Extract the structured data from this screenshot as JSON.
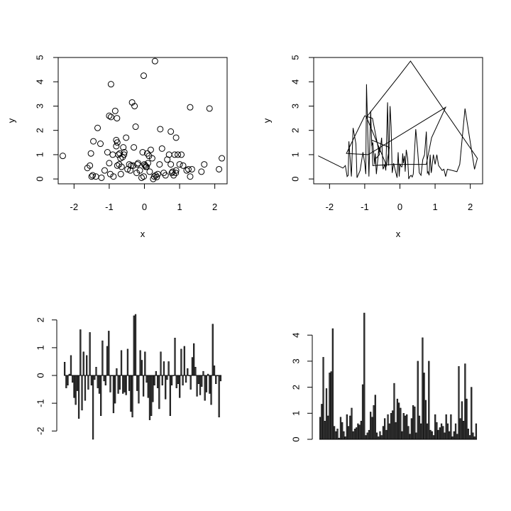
{
  "chart_data": [
    {
      "type": "scatter",
      "xlabel": "x",
      "ylabel": "y",
      "xlim": [
        -2.45,
        2.35
      ],
      "ylim": [
        -0.2,
        5.0
      ],
      "xticks": [
        "-2",
        "-1",
        "0",
        "1",
        "2"
      ],
      "yticks": [
        "0",
        "1",
        "2",
        "3",
        "4",
        "5"
      ],
      "x": [
        -2.32,
        -1.62,
        -1.55,
        -1.5,
        -1.47,
        -1.45,
        -1.38,
        -1.33,
        -1.25,
        -1.22,
        -1.13,
        -1.05,
        -1.0,
        -0.97,
        -0.95,
        -0.88,
        -0.83,
        -0.8,
        -0.77,
        -0.74,
        -0.72,
        -0.7,
        -0.67,
        -0.65,
        -0.62,
        -0.6,
        -0.57,
        -0.52,
        -0.48,
        -0.43,
        -0.4,
        -0.35,
        -0.32,
        -0.28,
        -0.25,
        -0.22,
        -0.18,
        -0.13,
        -0.08,
        -0.05,
        -0.02,
        0.0,
        0.02,
        0.04,
        0.06,
        0.08,
        0.1,
        0.13,
        0.15,
        0.18,
        0.22,
        0.25,
        0.28,
        0.32,
        0.35,
        0.38,
        0.45,
        0.5,
        0.55,
        0.6,
        0.65,
        0.7,
        0.75,
        0.78,
        0.8,
        0.83,
        0.86,
        0.89,
        0.9,
        0.95,
        1.0,
        1.05,
        1.1,
        1.2,
        1.25,
        1.3,
        1.35,
        1.62,
        1.7,
        1.85,
        2.12,
        2.2,
        0.3,
        -0.02,
        -0.95,
        -0.38,
        -0.3,
        -0.8,
        -0.77,
        -0.2,
        0.43,
        0.75,
        0.9,
        1.3,
        -0.9,
        -1.52,
        -1.0,
        -0.78,
        -0.58,
        -0.68
      ],
      "y": [
        0.95,
        0.45,
        0.55,
        0.1,
        0.15,
        1.55,
        0.1,
        2.1,
        1.45,
        0.05,
        0.35,
        1.1,
        0.65,
        0.2,
        3.9,
        0.1,
        2.8,
        1.35,
        1.5,
        1.0,
        0.6,
        1.05,
        0.2,
        0.5,
        0.9,
        1.3,
        1.1,
        1.7,
        0.4,
        0.6,
        0.35,
        3.15,
        0.55,
        3.0,
        2.15,
        0.25,
        0.65,
        0.35,
        0.05,
        1.1,
        0.1,
        0.6,
        0.55,
        0.5,
        0.5,
        1.05,
        0.65,
        0.95,
        0.3,
        1.2,
        0.85,
        0.0,
        0.1,
        0.15,
        0.08,
        0.2,
        2.05,
        1.25,
        0.25,
        0.15,
        0.8,
        1.0,
        1.95,
        0.25,
        0.3,
        0.15,
        1.0,
        0.25,
        0.35,
        1.0,
        0.6,
        1.0,
        0.55,
        0.35,
        0.4,
        0.1,
        0.4,
        0.3,
        0.6,
        2.9,
        0.4,
        0.85,
        4.85,
        4.25,
        2.55,
        0.55,
        1.3,
        1.6,
        0.55,
        0.6,
        0.6,
        0.6,
        1.7,
        2.95,
        1.0,
        1.05,
        2.6,
        2.5,
        1.0,
        0.85
      ]
    },
    {
      "type": "line",
      "xlabel": "x",
      "ylabel": "y",
      "xlim": [
        -2.45,
        2.35
      ],
      "ylim": [
        -0.2,
        5.0
      ],
      "xticks": [
        "-2",
        "-1",
        "0",
        "1",
        "2"
      ],
      "yticks": [
        "0",
        "1",
        "2",
        "3",
        "4",
        "5"
      ],
      "x": [
        -2.32,
        -1.62,
        -1.55,
        -1.5,
        -1.47,
        -1.45,
        -1.38,
        -1.33,
        -1.25,
        -1.22,
        -1.13,
        -1.05,
        -1.0,
        -0.97,
        -0.95,
        -0.88,
        -0.83,
        -0.8,
        -0.77,
        -0.74,
        -0.72,
        -0.7,
        -0.67,
        -0.65,
        -0.62,
        -0.6,
        -0.57,
        -0.52,
        -0.48,
        -0.43,
        -0.4,
        -0.35,
        -0.32,
        -0.28,
        -0.25,
        -0.22,
        -0.18,
        -0.13,
        -0.08,
        -0.05,
        -0.02,
        0.0,
        0.02,
        0.04,
        0.06,
        0.08,
        0.1,
        0.13,
        0.15,
        0.18,
        0.22,
        0.25,
        0.28,
        0.32,
        0.35,
        0.38,
        0.45,
        0.5,
        0.55,
        0.6,
        0.65,
        0.7,
        0.75,
        0.78,
        0.8,
        0.83,
        0.86,
        0.89,
        0.9,
        0.95,
        1.0,
        1.05,
        1.1,
        1.2,
        1.25,
        1.3,
        1.35,
        1.62,
        1.7,
        1.85,
        2.12,
        2.2,
        0.3,
        -0.02,
        -0.95,
        -0.38,
        -0.3,
        -0.8,
        -0.77,
        -0.2,
        0.43,
        0.75,
        0.9,
        1.3,
        -0.9,
        -1.52,
        -1.0,
        -0.78,
        -0.58,
        -0.68
      ],
      "y": [
        0.95,
        0.45,
        0.55,
        0.1,
        0.15,
        1.55,
        0.1,
        2.1,
        1.45,
        0.05,
        0.35,
        1.1,
        0.65,
        0.2,
        3.9,
        0.1,
        2.8,
        1.35,
        1.5,
        1.0,
        0.6,
        1.05,
        0.2,
        0.5,
        0.9,
        1.3,
        1.1,
        1.7,
        0.4,
        0.6,
        0.35,
        3.15,
        0.55,
        3.0,
        2.15,
        0.25,
        0.65,
        0.35,
        0.05,
        1.1,
        0.1,
        0.6,
        0.55,
        0.5,
        0.5,
        1.05,
        0.65,
        0.95,
        0.3,
        1.2,
        0.85,
        0.0,
        0.1,
        0.15,
        0.08,
        0.2,
        2.05,
        1.25,
        0.25,
        0.15,
        0.8,
        1.0,
        1.95,
        0.25,
        0.3,
        0.15,
        1.0,
        0.25,
        0.35,
        1.0,
        0.6,
        1.0,
        0.55,
        0.35,
        0.4,
        0.1,
        0.4,
        0.3,
        0.6,
        2.9,
        0.4,
        0.85,
        4.85,
        4.25,
        2.55,
        0.55,
        1.3,
        1.6,
        0.55,
        0.6,
        0.6,
        0.6,
        1.7,
        2.95,
        1.0,
        1.05,
        2.6,
        2.5,
        1.0,
        0.85
      ]
    },
    {
      "type": "bar",
      "xlabel": "",
      "ylabel": "",
      "ylim": [
        -2.3,
        2.25
      ],
      "yticks": [
        "-2",
        "-1",
        "0",
        "1",
        "2"
      ],
      "values": [
        0.48,
        -0.45,
        -0.35,
        0.05,
        0.72,
        -0.25,
        -0.8,
        -1.05,
        -0.55,
        -1.55,
        1.65,
        -1.25,
        0.85,
        -0.9,
        0.72,
        -0.5,
        1.55,
        -0.35,
        -2.3,
        -0.15,
        0.3,
        -0.45,
        -0.65,
        -1.45,
        1.25,
        -0.2,
        -0.35,
        1.05,
        1.6,
        -0.6,
        0.0,
        -1.35,
        -1.0,
        0.25,
        -0.65,
        -0.5,
        0.9,
        -0.65,
        -0.6,
        -0.7,
        0.95,
        -0.55,
        -1.3,
        -1.5,
        2.15,
        2.2,
        -0.55,
        -1.0,
        0.9,
        0.55,
        -0.75,
        0.85,
        -0.25,
        -0.8,
        -1.6,
        -1.45,
        -0.95,
        -0.35,
        0.15,
        -0.45,
        -1.2,
        0.85,
        -0.35,
        0.5,
        -0.85,
        -0.15,
        0.5,
        -1.45,
        -0.35,
        0.0,
        1.35,
        -0.45,
        -0.3,
        -0.8,
        0.95,
        -0.35,
        1.05,
        -0.25,
        0.25,
        0.0,
        -0.5,
        0.65,
        1.15,
        0.3,
        -0.75,
        -0.3,
        -0.7,
        -0.4,
        0.15,
        -0.9,
        -0.6,
        0.05,
        -0.65,
        -1.05,
        1.85,
        0.35,
        -0.3,
        0.0,
        -1.5,
        -0.2
      ]
    },
    {
      "type": "bar",
      "xlabel": "",
      "ylabel": "",
      "ylim": [
        0,
        4.85
      ],
      "yticks": [
        "0",
        "1",
        "2",
        "3",
        "4"
      ],
      "values": [
        0.85,
        1.35,
        3.15,
        0.7,
        1.95,
        0.9,
        2.55,
        2.6,
        4.25,
        0.5,
        0.3,
        0.4,
        0.05,
        0.85,
        0.65,
        0.3,
        0.1,
        0.95,
        0.5,
        0.9,
        1.2,
        0.3,
        0.4,
        0.45,
        0.6,
        0.55,
        0.7,
        2.1,
        4.85,
        0.15,
        0.25,
        0.35,
        1.05,
        0.85,
        1.3,
        1.7,
        0.25,
        0.1,
        0.3,
        0.15,
        0.5,
        0.8,
        0.35,
        0.95,
        0.6,
        1.0,
        1.1,
        2.15,
        0.65,
        1.55,
        1.4,
        1.2,
        0.3,
        1.0,
        0.9,
        0.95,
        0.5,
        0.2,
        0.8,
        1.3,
        1.25,
        0.25,
        3.0,
        0.9,
        0.6,
        3.9,
        2.55,
        1.5,
        0.6,
        3.0,
        0.35,
        0.3,
        0.15,
        0.95,
        0.65,
        0.35,
        0.45,
        0.6,
        0.5,
        0.25,
        0.95,
        0.6,
        0.3,
        0.95,
        0.1,
        0.3,
        0.6,
        0.2,
        2.8,
        0.8,
        1.45,
        0.7,
        2.9,
        1.55,
        0.4,
        0.15,
        2.0,
        0.25,
        0.1,
        0.6
      ]
    }
  ]
}
